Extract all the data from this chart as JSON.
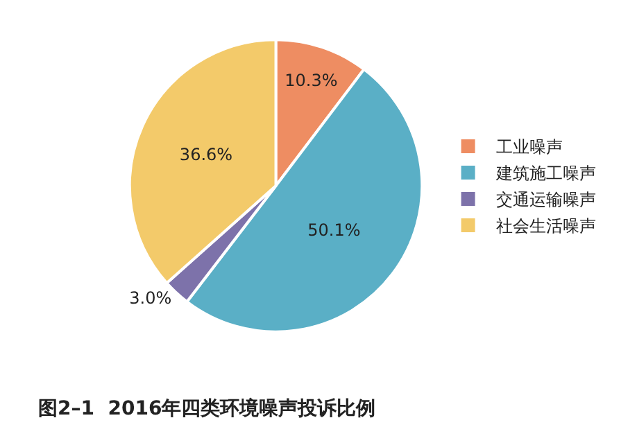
{
  "chart_data": {
    "type": "pie",
    "title": "图2–1  2016年四类环境噪声投诉比例",
    "categories": [
      "工业噪声",
      "建筑施工噪声",
      "交通运输噪声",
      "社会生活噪声"
    ],
    "values": [
      10.3,
      50.1,
      3.0,
      36.6
    ],
    "value_labels": [
      "10.3%",
      "50.1%",
      "3.0%",
      "36.6%"
    ],
    "colors": [
      "#ee8d62",
      "#5aafc6",
      "#7d72aa",
      "#f3ca6a"
    ],
    "legend": "right"
  }
}
